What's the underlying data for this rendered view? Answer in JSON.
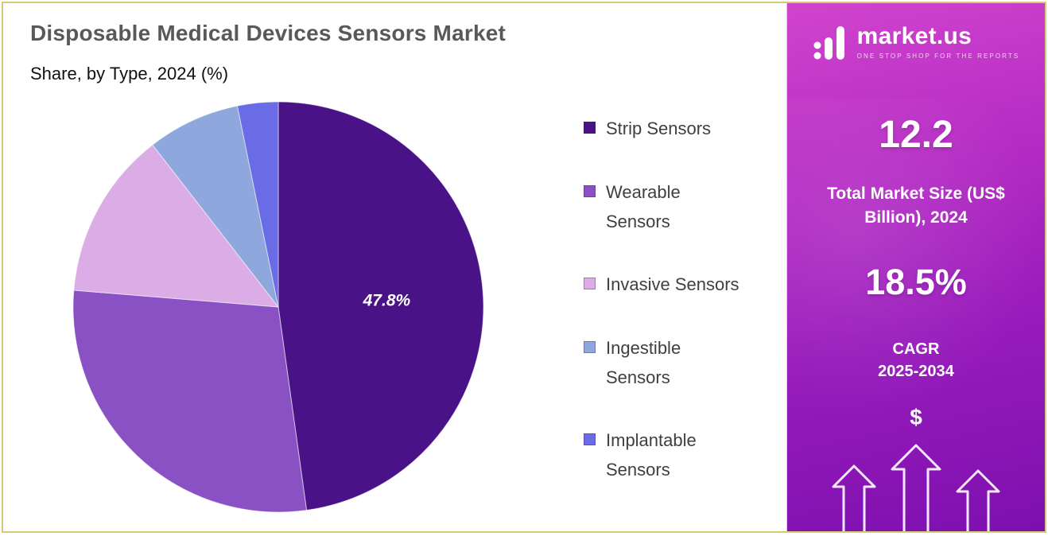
{
  "header": {
    "title": "Disposable Medical Devices Sensors Market",
    "subtitle": "Share, by Type, 2024 (%)"
  },
  "chart_data": {
    "type": "pie",
    "title": "Disposable Medical Devices Sensors Market Share, by Type, 2024 (%)",
    "labels": [
      "Strip Sensors",
      "Wearable Sensors",
      "Invasive Sensors",
      "Ingestible Sensors",
      "Implantable Sensors"
    ],
    "values": [
      47.8,
      28.5,
      13.2,
      7.3,
      3.2
    ],
    "colors": [
      "#4a1287",
      "#8a51c5",
      "#dcace7",
      "#8ea8dd",
      "#6a6ce6"
    ],
    "start_angle_deg": 0,
    "direction": "clockwise",
    "legend_position": "right",
    "data_label": {
      "text": "47.8%",
      "slice_index": 0
    }
  },
  "legend": {
    "items": [
      {
        "label": "Strip Sensors",
        "color": "#4a1287"
      },
      {
        "label": "Wearable\nSensors",
        "color": "#8a51c5"
      },
      {
        "label": "Invasive Sensors",
        "color": "#dcace7"
      },
      {
        "label": "Ingestible\nSensors",
        "color": "#8ea8dd"
      },
      {
        "label": "Implantable\nSensors",
        "color": "#6a6ce6"
      }
    ]
  },
  "sidebar": {
    "logo": {
      "text": "market.us",
      "tagline": "ONE STOP SHOP FOR THE REPORTS"
    },
    "market_size_value": "12.2",
    "market_size_label": "Total Market Size (US$ Billion), 2024",
    "cagr_value": "18.5%",
    "cagr_label_line1": "CAGR",
    "cagr_label_line2": "2025-2034",
    "dollar_symbol": "$",
    "colors": {
      "gradient_top": "#d044cd",
      "gradient_bottom": "#7d10af"
    }
  }
}
